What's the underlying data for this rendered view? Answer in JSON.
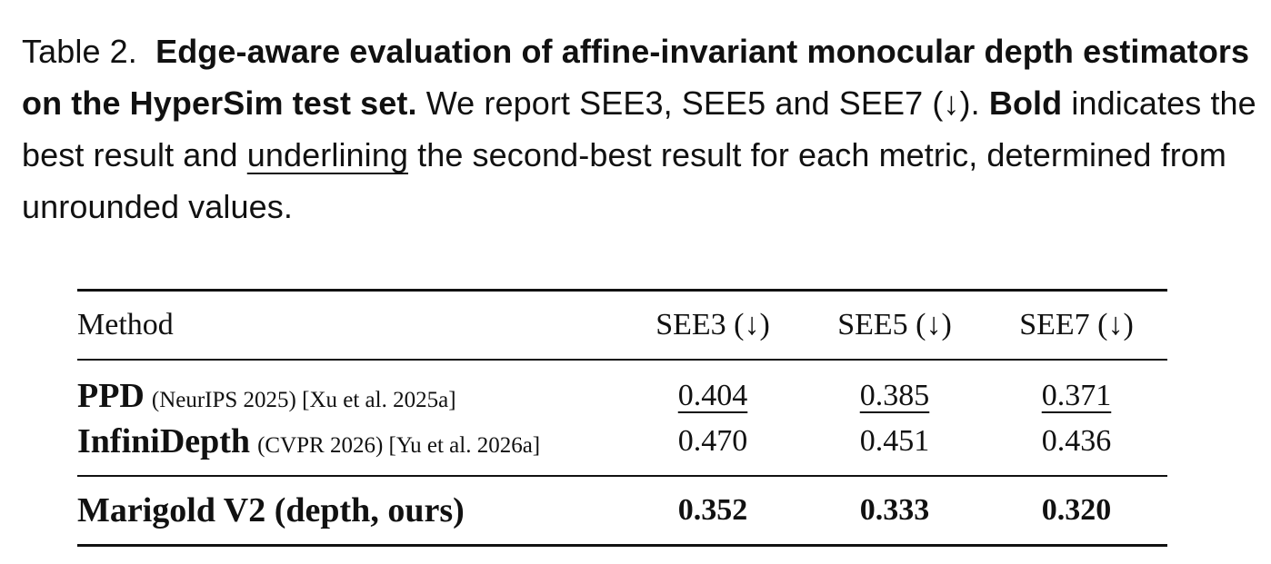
{
  "caption": {
    "label": "Table 2.",
    "title": "Edge-aware evaluation of affine-invariant monocular depth estimators on the HyperSim test set.",
    "text_1": "We report SEE3, SEE5 and SEE7 (↓).",
    "bold_word": "Bold",
    "text_2": "indicates the best result and",
    "underline_word": "underlining",
    "text_3": "the second-best result for each metric, determined from unrounded values."
  },
  "table": {
    "headers": [
      "Method",
      "SEE3 (↓)",
      "SEE5 (↓)",
      "SEE7 (↓)"
    ],
    "rows": [
      {
        "method": "PPD",
        "venue": "(NeurIPS 2025) [Xu et al. 2025a]",
        "values": [
          "0.404",
          "0.385",
          "0.371"
        ]
      },
      {
        "method": "InfiniDepth",
        "venue": "(CVPR 2026) [Yu et al. 2026a]",
        "values": [
          "0.470",
          "0.451",
          "0.436"
        ]
      }
    ],
    "ours": {
      "method": "Marigold V2 (depth, ours)",
      "values": [
        "0.352",
        "0.333",
        "0.320"
      ]
    }
  }
}
